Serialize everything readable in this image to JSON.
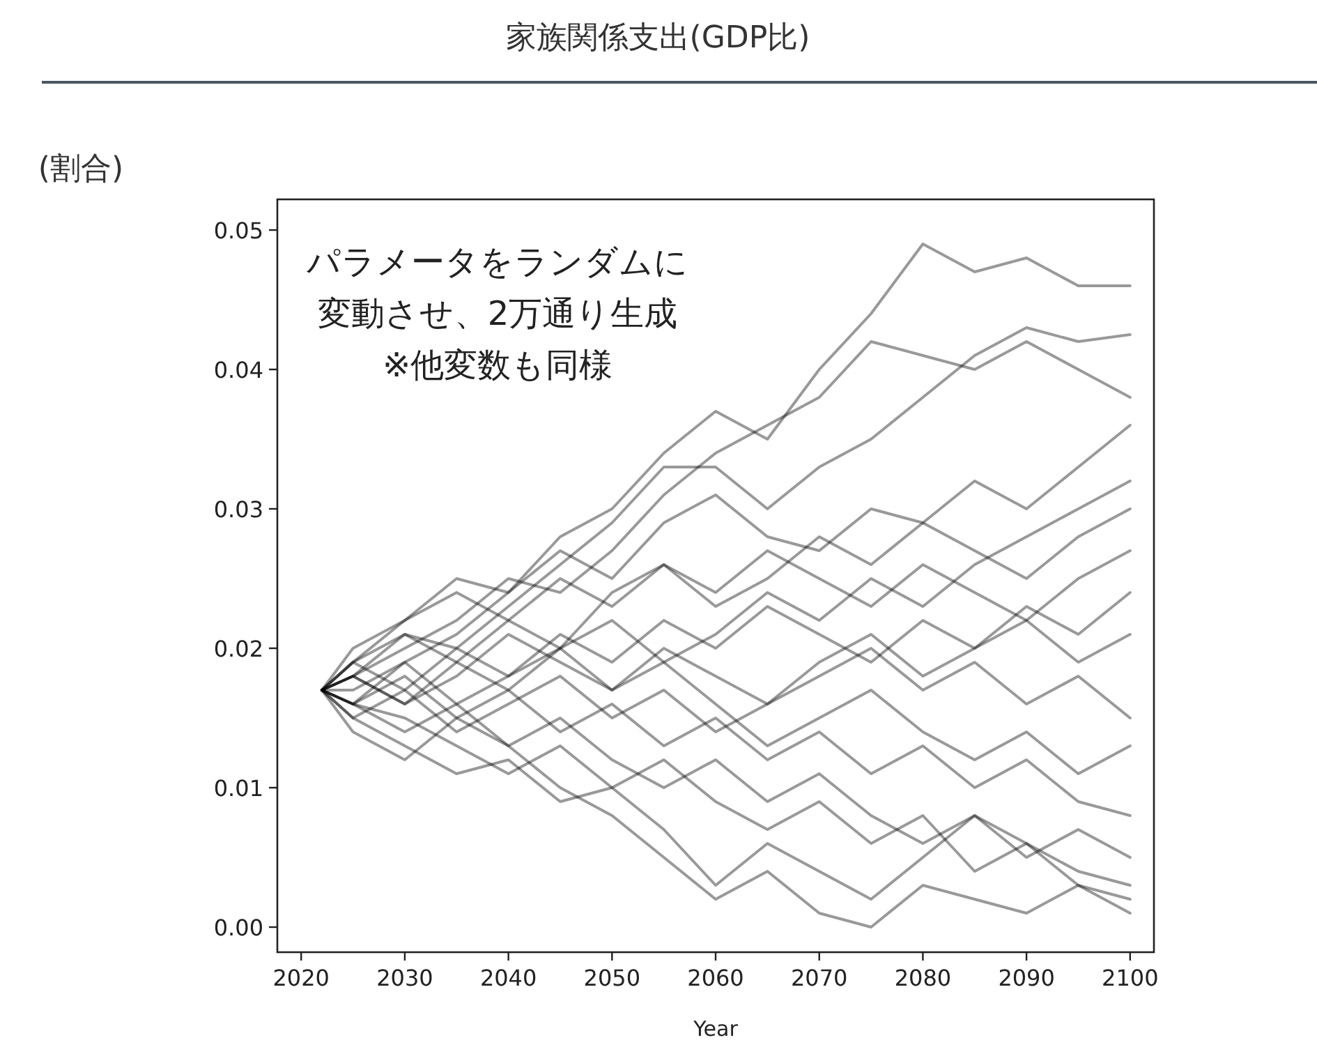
{
  "chart_data": {
    "type": "line",
    "title": "家族関係支出(GDP比)",
    "xlabel": "Year",
    "ylabel": "(割合)",
    "annotations": [
      "パラメータをランダムに",
      "変動させ、2万通り生成",
      "※他変数も同様"
    ],
    "x": [
      2022,
      2025,
      2030,
      2035,
      2040,
      2045,
      2050,
      2055,
      2060,
      2065,
      2070,
      2075,
      2080,
      2085,
      2090,
      2095,
      2100
    ],
    "xlim": [
      2017.7,
      2102.3
    ],
    "ylim": [
      -0.0018,
      0.0522
    ],
    "xticks": [
      2020,
      2030,
      2040,
      2050,
      2060,
      2070,
      2080,
      2090,
      2100
    ],
    "yticks": [
      {
        "value": 0,
        "label": "0.00"
      },
      {
        "value": 0.01,
        "label": "0.01"
      },
      {
        "value": 0.02,
        "label": "0.02"
      },
      {
        "value": 0.03,
        "label": "0.03"
      },
      {
        "value": 0.04,
        "label": "0.04"
      },
      {
        "value": 0.05,
        "label": "0.05"
      }
    ],
    "series": [
      {
        "color": "#000000",
        "values": [
          0.017,
          0.02,
          0.022,
          0.025,
          0.024,
          0.028,
          0.03,
          0.034,
          0.037,
          0.035,
          0.04,
          0.044,
          0.049,
          0.047,
          0.048,
          0.046,
          0.046
        ]
      },
      {
        "color": "#000000",
        "values": [
          0.017,
          0.019,
          0.021,
          0.02,
          0.023,
          0.026,
          0.029,
          0.033,
          0.033,
          0.03,
          0.033,
          0.035,
          0.038,
          0.041,
          0.043,
          0.042,
          0.0425
        ]
      },
      {
        "color": "#000000",
        "values": [
          0.017,
          0.018,
          0.02,
          0.022,
          0.025,
          0.024,
          0.027,
          0.031,
          0.034,
          0.036,
          0.038,
          0.042,
          0.041,
          0.04,
          0.042,
          0.04,
          0.038
        ]
      },
      {
        "color": "#000000",
        "values": [
          0.017,
          0.016,
          0.019,
          0.021,
          0.024,
          0.027,
          0.025,
          0.029,
          0.031,
          0.028,
          0.027,
          0.03,
          0.029,
          0.032,
          0.03,
          0.033,
          0.036
        ]
      },
      {
        "color": "#000000",
        "values": [
          0.017,
          0.015,
          0.013,
          0.011,
          0.012,
          0.009,
          0.01,
          0.007,
          0.003,
          0.006,
          0.004,
          0.002,
          0.005,
          0.008,
          0.006,
          0.003,
          0.002
        ]
      },
      {
        "color": "#000000",
        "values": [
          0.017,
          0.014,
          0.012,
          0.015,
          0.013,
          0.01,
          0.008,
          0.005,
          0.002,
          0.004,
          0.001,
          0.0,
          0.003,
          0.002,
          0.001,
          0.003,
          0.001
        ]
      },
      {
        "color": "#000000",
        "values": [
          0.017,
          0.018,
          0.016,
          0.019,
          0.017,
          0.02,
          0.022,
          0.019,
          0.021,
          0.024,
          0.022,
          0.025,
          0.023,
          0.026,
          0.028,
          0.03,
          0.032
        ]
      },
      {
        "color": "#000000",
        "values": [
          0.017,
          0.016,
          0.018,
          0.015,
          0.017,
          0.014,
          0.016,
          0.013,
          0.015,
          0.012,
          0.014,
          0.011,
          0.013,
          0.01,
          0.012,
          0.009,
          0.008
        ]
      },
      {
        "color": "#000000",
        "values": [
          0.017,
          0.019,
          0.017,
          0.02,
          0.018,
          0.021,
          0.019,
          0.022,
          0.02,
          0.023,
          0.021,
          0.019,
          0.022,
          0.02,
          0.023,
          0.021,
          0.024
        ]
      },
      {
        "color": "#000000",
        "values": [
          0.017,
          0.015,
          0.017,
          0.014,
          0.016,
          0.018,
          0.015,
          0.017,
          0.014,
          0.016,
          0.018,
          0.02,
          0.017,
          0.019,
          0.016,
          0.018,
          0.015
        ]
      },
      {
        "color": "#000000",
        "values": [
          0.017,
          0.018,
          0.021,
          0.019,
          0.022,
          0.02,
          0.024,
          0.026,
          0.023,
          0.025,
          0.028,
          0.026,
          0.029,
          0.027,
          0.025,
          0.028,
          0.03
        ]
      },
      {
        "color": "#000000",
        "values": [
          0.017,
          0.016,
          0.014,
          0.016,
          0.013,
          0.015,
          0.012,
          0.01,
          0.012,
          0.009,
          0.011,
          0.008,
          0.006,
          0.008,
          0.005,
          0.007,
          0.005
        ]
      },
      {
        "color": "#000000",
        "values": [
          0.017,
          0.017,
          0.019,
          0.016,
          0.018,
          0.02,
          0.017,
          0.019,
          0.016,
          0.013,
          0.015,
          0.017,
          0.014,
          0.012,
          0.014,
          0.011,
          0.013
        ]
      },
      {
        "color": "#000000",
        "values": [
          0.017,
          0.018,
          0.016,
          0.018,
          0.021,
          0.019,
          0.017,
          0.02,
          0.018,
          0.016,
          0.019,
          0.021,
          0.018,
          0.02,
          0.022,
          0.019,
          0.021
        ]
      },
      {
        "color": "#000000",
        "values": [
          0.017,
          0.016,
          0.015,
          0.013,
          0.011,
          0.013,
          0.01,
          0.012,
          0.009,
          0.007,
          0.009,
          0.006,
          0.008,
          0.004,
          0.006,
          0.004,
          0.003
        ]
      },
      {
        "color": "#000000",
        "values": [
          0.017,
          0.019,
          0.022,
          0.024,
          0.022,
          0.025,
          0.023,
          0.026,
          0.024,
          0.027,
          0.025,
          0.023,
          0.026,
          0.024,
          0.022,
          0.025,
          0.027
        ]
      }
    ]
  }
}
